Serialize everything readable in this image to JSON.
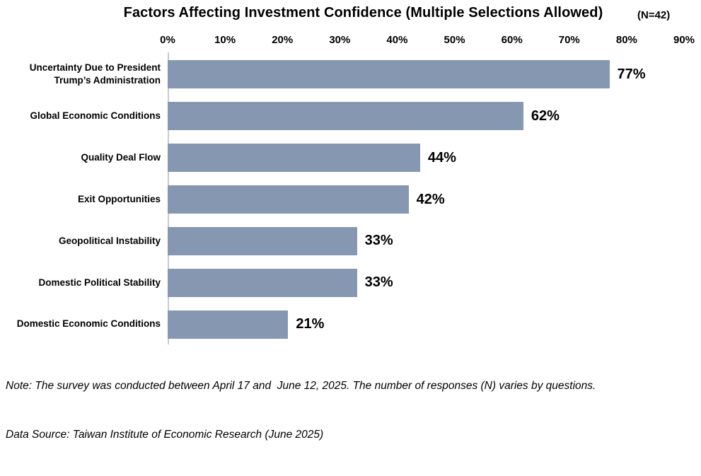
{
  "header": {
    "title": "Factors Affecting Investment Confidence (Multiple Selections Allowed)",
    "n_label": "(N=42)"
  },
  "chart_data": {
    "type": "bar",
    "orientation": "horizontal",
    "title": "Factors Affecting Investment Confidence (Multiple Selections Allowed)",
    "subtitle": "(N=42)",
    "categories": [
      "Uncertainty Due to President Trump’s Administration",
      "Global Economic Conditions",
      "Quality Deal Flow",
      "Exit Opportunities",
      "Geopolitical Instability",
      "Domestic Political Stability",
      "Domestic Economic Conditions"
    ],
    "values": [
      77,
      62,
      44,
      42,
      33,
      33,
      21
    ],
    "value_labels": [
      "77%",
      "62%",
      "44%",
      "42%",
      "33%",
      "33%",
      "21%"
    ],
    "axis": {
      "min": 0,
      "max": 90,
      "ticks": [
        "0%",
        "10%",
        "20%",
        "30%",
        "40%",
        "50%",
        "60%",
        "70%",
        "80%",
        "90%"
      ]
    },
    "xlabel": "",
    "ylabel": "",
    "grid": false,
    "legend": false,
    "bar_color": "#8697b1",
    "axis_line_color": "#c6cbd3"
  },
  "notes": {
    "line1": "Note: The survey was conducted between April 17 and  June 12, 2025. The number of responses (N) varies by questions.",
    "line2": "Data Source: Taiwan Institute of Economic Research (June 2025)"
  }
}
